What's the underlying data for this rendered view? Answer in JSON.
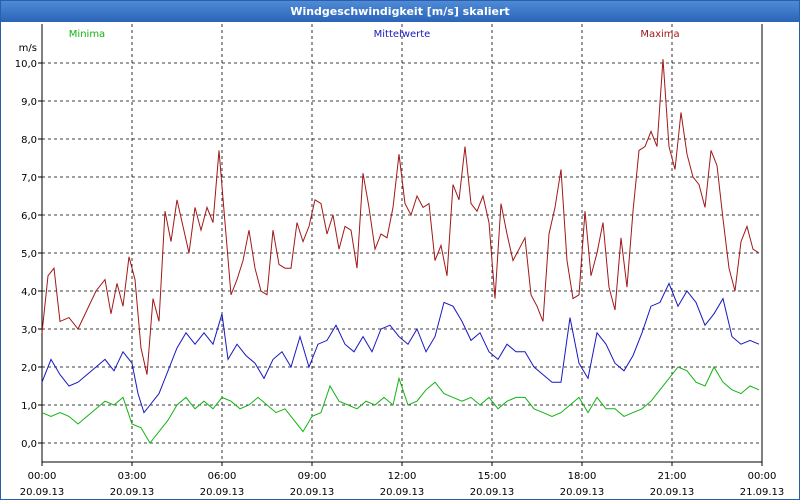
{
  "window": {
    "title": "Windgeschwindigkeit [m/s] skaliert"
  },
  "colors": {
    "minima": "#12b312",
    "mittel": "#1818c0",
    "maxima": "#a01818",
    "grid": "#000000",
    "title_bg": "#2a64b8"
  },
  "chart_data": {
    "type": "line",
    "title": "Windgeschwindigkeit [m/s] skaliert",
    "ylabel": "m/s",
    "xlabel": "",
    "ylim": [
      -0.5,
      10.5
    ],
    "xlim": [
      0,
      24
    ],
    "yticks": [
      0,
      1,
      2,
      3,
      4,
      5,
      6,
      7,
      8,
      9,
      10
    ],
    "ytick_labels": [
      "0,0",
      "1,0",
      "2,0",
      "3,0",
      "4,0",
      "5,0",
      "6,0",
      "7,0",
      "8,0",
      "9,0",
      "10,0"
    ],
    "xticks": [
      0,
      3,
      6,
      9,
      12,
      15,
      18,
      21,
      24
    ],
    "xtick_times": [
      "00:00",
      "03:00",
      "06:00",
      "09:00",
      "12:00",
      "15:00",
      "18:00",
      "21:00",
      "00:00"
    ],
    "xtick_dates": [
      "20.09.13",
      "20.09.13",
      "20.09.13",
      "20.09.13",
      "20.09.13",
      "20.09.13",
      "20.09.13",
      "20.09.13",
      "21.09.13"
    ],
    "grid": true,
    "legend_position": "top",
    "series": [
      {
        "name": "Minima",
        "color": "#12b312",
        "points": [
          [
            0,
            0.8
          ],
          [
            0.3,
            0.7
          ],
          [
            0.6,
            0.8
          ],
          [
            0.9,
            0.7
          ],
          [
            1.2,
            0.5
          ],
          [
            1.5,
            0.7
          ],
          [
            1.8,
            0.9
          ],
          [
            2.1,
            1.1
          ],
          [
            2.4,
            1.0
          ],
          [
            2.7,
            1.2
          ],
          [
            3.0,
            0.5
          ],
          [
            3.3,
            0.4
          ],
          [
            3.6,
            0.0
          ],
          [
            3.9,
            0.3
          ],
          [
            4.2,
            0.6
          ],
          [
            4.5,
            1.0
          ],
          [
            4.8,
            1.2
          ],
          [
            5.1,
            0.9
          ],
          [
            5.4,
            1.1
          ],
          [
            5.7,
            0.9
          ],
          [
            6.0,
            1.2
          ],
          [
            6.3,
            1.1
          ],
          [
            6.6,
            0.9
          ],
          [
            6.9,
            1.0
          ],
          [
            7.2,
            1.2
          ],
          [
            7.5,
            1.0
          ],
          [
            7.8,
            0.8
          ],
          [
            8.1,
            0.9
          ],
          [
            8.4,
            0.6
          ],
          [
            8.7,
            0.3
          ],
          [
            9.0,
            0.7
          ],
          [
            9.3,
            0.8
          ],
          [
            9.6,
            1.5
          ],
          [
            9.9,
            1.1
          ],
          [
            10.2,
            1.0
          ],
          [
            10.5,
            0.9
          ],
          [
            10.8,
            1.1
          ],
          [
            11.1,
            1.0
          ],
          [
            11.4,
            1.2
          ],
          [
            11.7,
            1.0
          ],
          [
            11.9,
            1.7
          ],
          [
            12.2,
            1.0
          ],
          [
            12.5,
            1.1
          ],
          [
            12.8,
            1.4
          ],
          [
            13.1,
            1.6
          ],
          [
            13.4,
            1.3
          ],
          [
            13.7,
            1.2
          ],
          [
            14.0,
            1.1
          ],
          [
            14.3,
            1.2
          ],
          [
            14.6,
            1.0
          ],
          [
            14.9,
            1.2
          ],
          [
            15.2,
            0.9
          ],
          [
            15.5,
            1.1
          ],
          [
            15.8,
            1.2
          ],
          [
            16.1,
            1.2
          ],
          [
            16.4,
            0.9
          ],
          [
            16.7,
            0.8
          ],
          [
            17.0,
            0.7
          ],
          [
            17.3,
            0.8
          ],
          [
            17.6,
            1.0
          ],
          [
            17.9,
            1.2
          ],
          [
            18.2,
            0.8
          ],
          [
            18.5,
            1.2
          ],
          [
            18.8,
            0.9
          ],
          [
            19.1,
            0.9
          ],
          [
            19.4,
            0.7
          ],
          [
            19.7,
            0.8
          ],
          [
            20.0,
            0.9
          ],
          [
            20.3,
            1.1
          ],
          [
            20.6,
            1.4
          ],
          [
            20.9,
            1.7
          ],
          [
            21.2,
            2.0
          ],
          [
            21.5,
            1.9
          ],
          [
            21.8,
            1.6
          ],
          [
            22.1,
            1.5
          ],
          [
            22.4,
            2.0
          ],
          [
            22.7,
            1.6
          ],
          [
            23.0,
            1.4
          ],
          [
            23.3,
            1.3
          ],
          [
            23.6,
            1.5
          ],
          [
            23.9,
            1.4
          ]
        ]
      },
      {
        "name": "Mittelwerte",
        "color": "#1818c0",
        "points": [
          [
            0,
            1.6
          ],
          [
            0.3,
            2.2
          ],
          [
            0.6,
            1.8
          ],
          [
            0.9,
            1.5
          ],
          [
            1.2,
            1.6
          ],
          [
            1.5,
            1.8
          ],
          [
            1.8,
            2.0
          ],
          [
            2.1,
            2.2
          ],
          [
            2.4,
            1.9
          ],
          [
            2.7,
            2.4
          ],
          [
            3.0,
            2.1
          ],
          [
            3.2,
            1.3
          ],
          [
            3.4,
            0.8
          ],
          [
            3.6,
            1.0
          ],
          [
            3.9,
            1.3
          ],
          [
            4.2,
            1.9
          ],
          [
            4.5,
            2.5
          ],
          [
            4.8,
            2.9
          ],
          [
            5.1,
            2.6
          ],
          [
            5.4,
            2.9
          ],
          [
            5.7,
            2.6
          ],
          [
            6.0,
            3.4
          ],
          [
            6.2,
            2.2
          ],
          [
            6.5,
            2.6
          ],
          [
            6.8,
            2.3
          ],
          [
            7.1,
            2.1
          ],
          [
            7.4,
            1.7
          ],
          [
            7.7,
            2.2
          ],
          [
            8.0,
            2.4
          ],
          [
            8.3,
            2.0
          ],
          [
            8.6,
            2.8
          ],
          [
            8.9,
            2.0
          ],
          [
            9.2,
            2.6
          ],
          [
            9.5,
            2.7
          ],
          [
            9.8,
            3.1
          ],
          [
            10.1,
            2.6
          ],
          [
            10.4,
            2.4
          ],
          [
            10.7,
            2.8
          ],
          [
            11.0,
            2.4
          ],
          [
            11.3,
            3.0
          ],
          [
            11.6,
            3.1
          ],
          [
            11.9,
            2.8
          ],
          [
            12.2,
            2.6
          ],
          [
            12.5,
            3.0
          ],
          [
            12.8,
            2.4
          ],
          [
            13.1,
            2.8
          ],
          [
            13.4,
            3.7
          ],
          [
            13.7,
            3.6
          ],
          [
            14.0,
            3.2
          ],
          [
            14.3,
            2.7
          ],
          [
            14.6,
            2.9
          ],
          [
            14.9,
            2.4
          ],
          [
            15.2,
            2.2
          ],
          [
            15.5,
            2.6
          ],
          [
            15.8,
            2.4
          ],
          [
            16.1,
            2.4
          ],
          [
            16.4,
            2.0
          ],
          [
            16.7,
            1.8
          ],
          [
            17.0,
            1.6
          ],
          [
            17.3,
            1.6
          ],
          [
            17.6,
            3.3
          ],
          [
            17.9,
            2.1
          ],
          [
            18.2,
            1.7
          ],
          [
            18.5,
            2.9
          ],
          [
            18.8,
            2.6
          ],
          [
            19.1,
            2.1
          ],
          [
            19.4,
            1.9
          ],
          [
            19.7,
            2.3
          ],
          [
            20.0,
            2.9
          ],
          [
            20.3,
            3.6
          ],
          [
            20.6,
            3.7
          ],
          [
            20.9,
            4.2
          ],
          [
            21.2,
            3.6
          ],
          [
            21.5,
            4.0
          ],
          [
            21.8,
            3.7
          ],
          [
            22.1,
            3.1
          ],
          [
            22.4,
            3.4
          ],
          [
            22.7,
            3.8
          ],
          [
            23.0,
            2.8
          ],
          [
            23.3,
            2.6
          ],
          [
            23.6,
            2.7
          ],
          [
            23.9,
            2.6
          ]
        ]
      },
      {
        "name": "Maxima",
        "color": "#a01818",
        "points": [
          [
            0,
            2.9
          ],
          [
            0.2,
            4.4
          ],
          [
            0.4,
            4.6
          ],
          [
            0.6,
            3.2
          ],
          [
            0.9,
            3.3
          ],
          [
            1.2,
            3.0
          ],
          [
            1.5,
            3.5
          ],
          [
            1.8,
            4.0
          ],
          [
            2.1,
            4.3
          ],
          [
            2.3,
            3.4
          ],
          [
            2.5,
            4.2
          ],
          [
            2.7,
            3.6
          ],
          [
            2.9,
            4.9
          ],
          [
            3.1,
            4.3
          ],
          [
            3.3,
            2.5
          ],
          [
            3.5,
            1.8
          ],
          [
            3.7,
            3.8
          ],
          [
            3.9,
            3.2
          ],
          [
            4.1,
            6.1
          ],
          [
            4.3,
            5.3
          ],
          [
            4.5,
            6.4
          ],
          [
            4.7,
            5.7
          ],
          [
            4.9,
            5.0
          ],
          [
            5.1,
            6.2
          ],
          [
            5.3,
            5.6
          ],
          [
            5.5,
            6.2
          ],
          [
            5.7,
            5.8
          ],
          [
            5.9,
            7.7
          ],
          [
            6.1,
            5.8
          ],
          [
            6.3,
            3.9
          ],
          [
            6.5,
            4.3
          ],
          [
            6.7,
            4.8
          ],
          [
            6.9,
            5.6
          ],
          [
            7.1,
            4.6
          ],
          [
            7.3,
            4.0
          ],
          [
            7.5,
            3.9
          ],
          [
            7.7,
            5.6
          ],
          [
            7.9,
            4.7
          ],
          [
            8.1,
            4.6
          ],
          [
            8.3,
            4.6
          ],
          [
            8.5,
            5.8
          ],
          [
            8.7,
            5.3
          ],
          [
            8.9,
            5.7
          ],
          [
            9.1,
            6.4
          ],
          [
            9.3,
            6.3
          ],
          [
            9.5,
            5.5
          ],
          [
            9.7,
            6.0
          ],
          [
            9.9,
            5.1
          ],
          [
            10.1,
            5.7
          ],
          [
            10.3,
            5.6
          ],
          [
            10.5,
            4.6
          ],
          [
            10.7,
            7.1
          ],
          [
            10.9,
            6.2
          ],
          [
            11.1,
            5.1
          ],
          [
            11.3,
            5.5
          ],
          [
            11.5,
            5.4
          ],
          [
            11.7,
            6.2
          ],
          [
            11.9,
            7.6
          ],
          [
            12.1,
            6.3
          ],
          [
            12.3,
            6.0
          ],
          [
            12.5,
            6.5
          ],
          [
            12.7,
            6.2
          ],
          [
            12.9,
            6.3
          ],
          [
            13.1,
            4.8
          ],
          [
            13.3,
            5.2
          ],
          [
            13.5,
            4.4
          ],
          [
            13.7,
            6.8
          ],
          [
            13.9,
            6.4
          ],
          [
            14.1,
            7.8
          ],
          [
            14.3,
            6.3
          ],
          [
            14.5,
            6.1
          ],
          [
            14.7,
            6.5
          ],
          [
            14.9,
            5.8
          ],
          [
            15.1,
            3.8
          ],
          [
            15.3,
            6.3
          ],
          [
            15.5,
            5.5
          ],
          [
            15.7,
            4.8
          ],
          [
            15.9,
            5.1
          ],
          [
            16.1,
            5.4
          ],
          [
            16.3,
            3.9
          ],
          [
            16.5,
            3.6
          ],
          [
            16.7,
            3.2
          ],
          [
            16.9,
            5.5
          ],
          [
            17.1,
            6.2
          ],
          [
            17.3,
            7.2
          ],
          [
            17.5,
            4.8
          ],
          [
            17.7,
            3.8
          ],
          [
            17.9,
            3.9
          ],
          [
            18.1,
            6.1
          ],
          [
            18.3,
            4.4
          ],
          [
            18.5,
            5.0
          ],
          [
            18.7,
            5.8
          ],
          [
            18.9,
            4.1
          ],
          [
            19.1,
            3.5
          ],
          [
            19.3,
            5.4
          ],
          [
            19.5,
            4.1
          ],
          [
            19.7,
            6.1
          ],
          [
            19.9,
            7.7
          ],
          [
            20.1,
            7.8
          ],
          [
            20.3,
            8.2
          ],
          [
            20.5,
            7.8
          ],
          [
            20.7,
            10.1
          ],
          [
            20.9,
            7.8
          ],
          [
            21.1,
            7.2
          ],
          [
            21.3,
            8.7
          ],
          [
            21.5,
            7.6
          ],
          [
            21.7,
            7.0
          ],
          [
            21.9,
            6.8
          ],
          [
            22.1,
            6.2
          ],
          [
            22.3,
            7.7
          ],
          [
            22.5,
            7.3
          ],
          [
            22.7,
            5.9
          ],
          [
            22.9,
            4.6
          ],
          [
            23.1,
            4.0
          ],
          [
            23.3,
            5.3
          ],
          [
            23.5,
            5.7
          ],
          [
            23.7,
            5.1
          ],
          [
            23.9,
            5.0
          ]
        ]
      }
    ]
  }
}
